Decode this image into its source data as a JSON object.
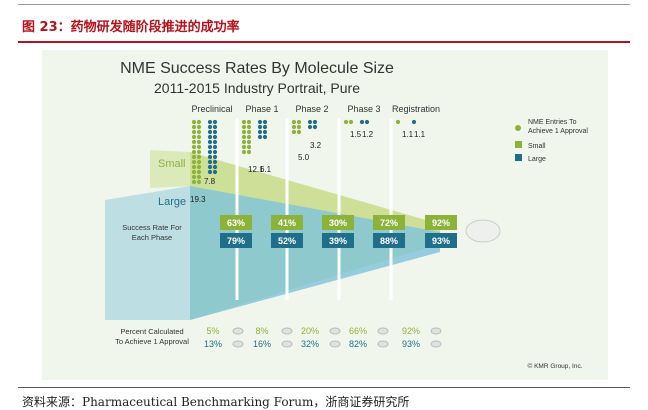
{
  "figure_title": "图 23：药物研发随阶段推进的成功率",
  "source": "资料来源：Pharmaceutical Benchmarking Forum，浙商证券研究所",
  "credit": "© KMR Group, Inc.",
  "colors": {
    "small": "#8cb23a",
    "large": "#1f6f8b",
    "green_light": "#c8dc8a",
    "blue_light": "#7ec3dc",
    "accent_red": "#b5121b"
  },
  "chart_data": {
    "type": "funnel",
    "title": "NME Success Rates By Molecule Size",
    "subtitle": "2011-2015 Industry Portrait, Pure",
    "phases": [
      "Preclinical",
      "Phase 1",
      "Phase 2",
      "Phase 3",
      "Registration"
    ],
    "entries_needed": {
      "small": [
        "",
        "12.1",
        "5.0",
        "1.5",
        "1.1"
      ],
      "large": [
        "",
        "6.1",
        "3.2",
        "1.2",
        "1.1"
      ],
      "preclinical_labels": [
        "7.8",
        "19.3"
      ]
    },
    "size_labels": {
      "small": "Small",
      "large": "Large"
    },
    "success_rate_label": "Success Rate For Each Phase",
    "success_rate": {
      "small": [
        "63%",
        "41%",
        "30%",
        "72%",
        "92%"
      ],
      "large": [
        "79%",
        "52%",
        "39%",
        "88%",
        "93%"
      ]
    },
    "cumulative_label_1": "Percent Calculated",
    "cumulative_label_2": "To Achieve 1 Approval",
    "cumulative": {
      "small": [
        "5%",
        "8%",
        "20%",
        "66%",
        "92%"
      ],
      "large": [
        "13%",
        "16%",
        "32%",
        "82%",
        "93%"
      ]
    },
    "legend": [
      {
        "name": "NME Entries To Achieve 1 Approval",
        "icon": "dot-icon"
      },
      {
        "name": "Small",
        "icon": "square-icon"
      },
      {
        "name": "Large",
        "icon": "square-icon"
      }
    ]
  }
}
